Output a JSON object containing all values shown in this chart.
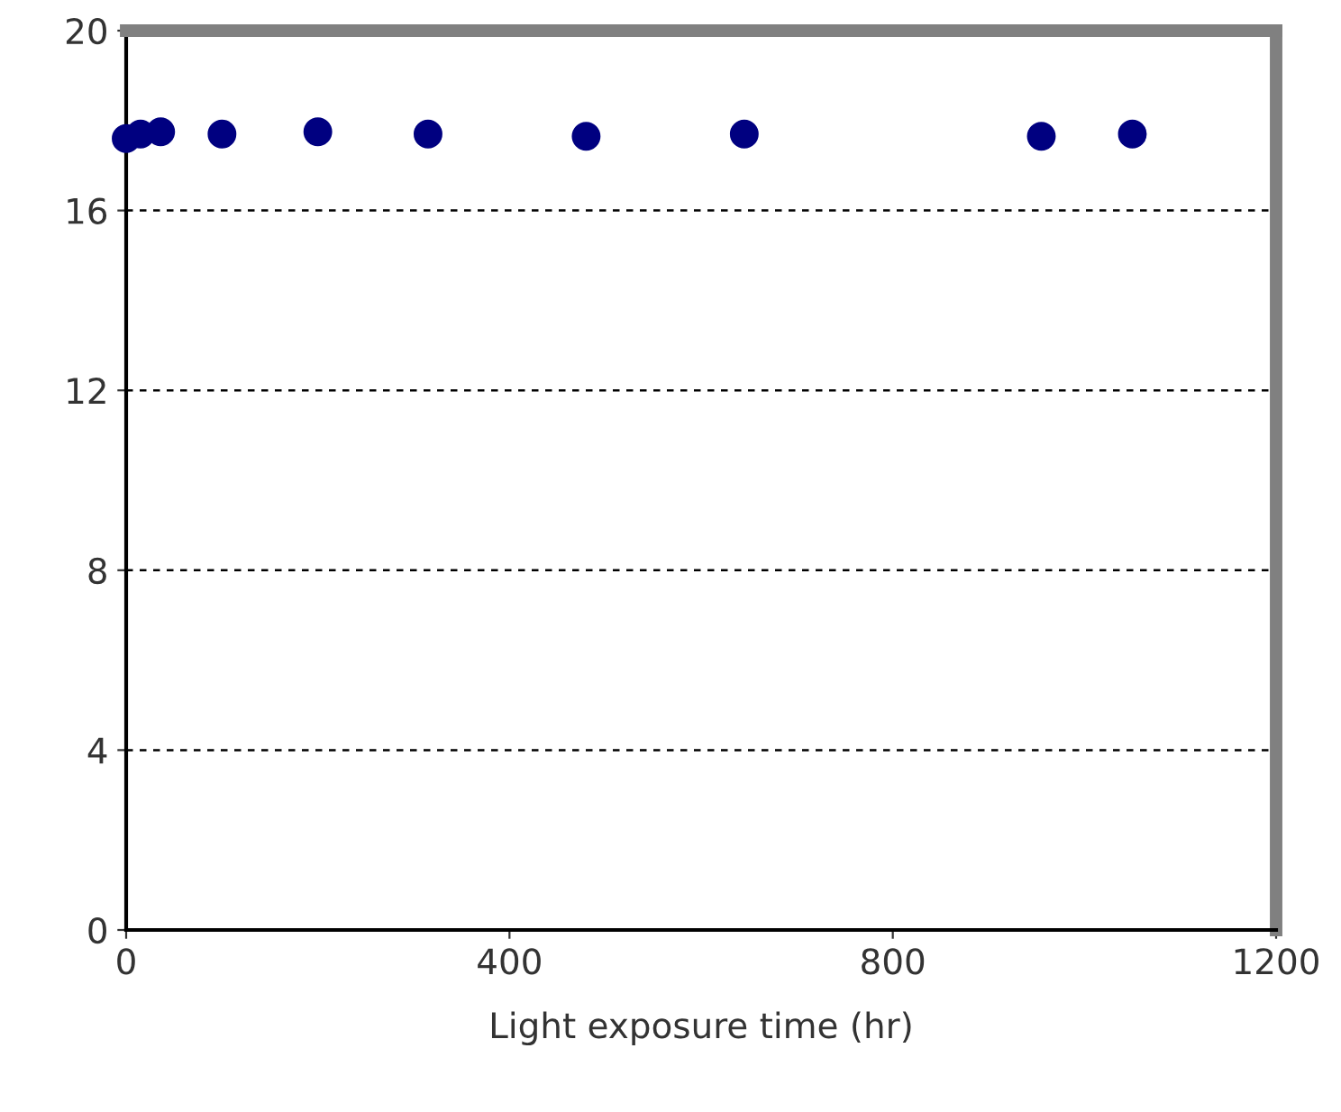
{
  "chart_data": {
    "type": "scatter",
    "xlabel": "Light exposure time (hr)",
    "x": [
      0,
      15,
      36,
      100,
      200,
      315,
      480,
      645,
      955,
      1050
    ],
    "series": [
      {
        "color": "#000080",
        "values": [
          17.6,
          17.7,
          17.75,
          17.7,
          17.75,
          17.7,
          17.65,
          17.7,
          17.65,
          17.7
        ]
      }
    ],
    "xlim": [
      0,
      1200
    ],
    "xticks": [
      0,
      400,
      800,
      1200
    ],
    "ylim": [
      0,
      20
    ],
    "yticks": [
      0,
      4,
      8,
      12,
      16,
      20
    ],
    "grid": "y",
    "marker": "circle"
  }
}
